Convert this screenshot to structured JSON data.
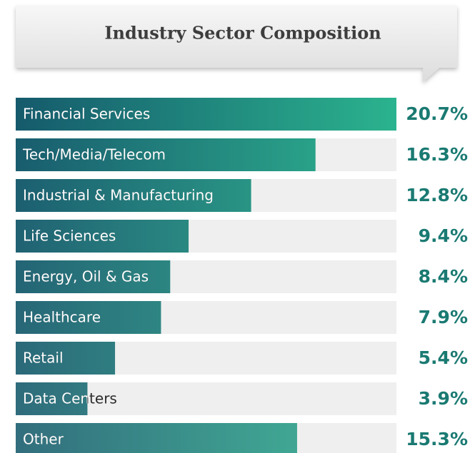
{
  "chart_data": {
    "type": "bar",
    "orientation": "horizontal",
    "title": "Industry Sector Composition",
    "categories": [
      "Financial Services",
      "Tech/Media/Telecom",
      "Industrial & Manufacturing",
      "Life Sciences",
      "Energy, Oil & Gas",
      "Healthcare",
      "Retail",
      "Data Centers",
      "Other"
    ],
    "values": [
      20.7,
      16.3,
      12.8,
      9.4,
      8.4,
      7.9,
      5.4,
      3.9,
      15.3
    ],
    "value_labels": [
      "20.7%",
      "16.3%",
      "12.8%",
      "9.4%",
      "8.4%",
      "7.9%",
      "5.4%",
      "3.9%",
      "15.3%"
    ],
    "gradient": [
      "#155a6c",
      "#2bb38e"
    ],
    "track_color": "#efefef",
    "label_color": "#1a7a72"
  }
}
